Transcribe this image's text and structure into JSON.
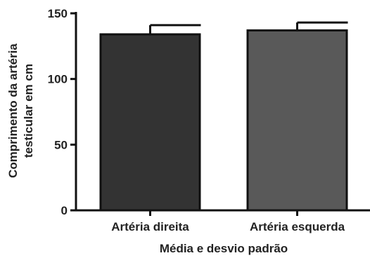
{
  "chart_data": {
    "type": "bar",
    "categories": [
      "Artéria direita",
      "Artéria esquerda"
    ],
    "values": [
      134,
      137
    ],
    "error_plus": [
      7,
      6
    ],
    "ylim": [
      0,
      150
    ],
    "yticks": [
      "0",
      "50",
      "100",
      "150"
    ],
    "xlabel": "Média e desvio padrão",
    "ylabel_lines": [
      "Comprimento da artéria",
      "testicular em cm"
    ],
    "grid": false,
    "colors": [
      "#333333",
      "#595959"
    ],
    "edge_color": "#111111"
  }
}
